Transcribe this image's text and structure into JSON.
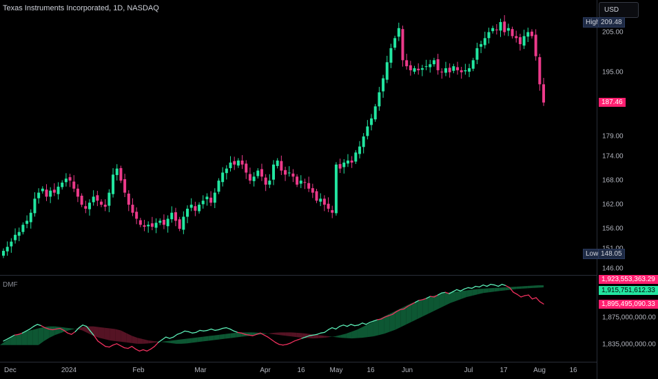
{
  "header": {
    "title": "Texas Instruments Incorporated, 1D, NASDAQ",
    "currency": "USD",
    "indicator": "DMF"
  },
  "price_scale": {
    "ticks": [
      "205.00",
      "195.00",
      "179.00",
      "174.00",
      "168.00",
      "162.00",
      "156.00",
      "151.00",
      "146.00"
    ],
    "high_label": "High",
    "high_value": "209.48",
    "low_label": "Low",
    "low_value": "148.05",
    "last_value": "187.46"
  },
  "indicator_scale": {
    "ticks": [
      "1,875,000,000.00",
      "1,835,000,000.00"
    ],
    "badges": [
      "1,923,553,363.29",
      "1,915,751,612.33",
      "1,895,495,090.33"
    ]
  },
  "time_axis": [
    "Dec",
    "2024",
    "Feb",
    "Mar",
    "Apr",
    "16",
    "May",
    "16",
    "Jun",
    "Jul",
    "17",
    "Aug",
    "16"
  ],
  "colors": {
    "up": "#22e6a0",
    "down": "#ec3a8a",
    "dmf_line_up": "#5cf0b8",
    "dmf_line_down": "#f0305e",
    "fill_up": "#0e5c36",
    "fill_down": "#5a1426",
    "badge_pink": "#ff1f70",
    "badge_green": "#22e6a0"
  },
  "chart_data": [
    {
      "type": "candlestick",
      "title": "Texas Instruments Incorporated, 1D, NASDAQ",
      "x": [
        "Dec",
        "2024",
        "Feb",
        "Mar",
        "Apr",
        "16",
        "May",
        "16",
        "Jun",
        "Jul",
        "17",
        "Aug",
        "16"
      ],
      "close_path": [
        150.5,
        151.5,
        152.8,
        154.5,
        155.2,
        157,
        158,
        160,
        163.5,
        165,
        166,
        164,
        165.5,
        165,
        166.5,
        167.5,
        168.5,
        168,
        166,
        164,
        162,
        161,
        162.5,
        164,
        163,
        162,
        161.5,
        165,
        169.5,
        171,
        168,
        165,
        162,
        160,
        158.5,
        157,
        156.5,
        157,
        156.5,
        157.5,
        158,
        157,
        158.5,
        160,
        158,
        156,
        159,
        161,
        162,
        160.5,
        162,
        163,
        164,
        162.5,
        165,
        168,
        170,
        171,
        172.5,
        172,
        173,
        172,
        170,
        168,
        169,
        170.5,
        169,
        167,
        168,
        172,
        173,
        170.5,
        169.5,
        170,
        169,
        167,
        168,
        167.5,
        166,
        165,
        163,
        163.5,
        162,
        161,
        160,
        172,
        171,
        172.5,
        173,
        172.5,
        175,
        176.5,
        179,
        181.5,
        183.5,
        186.5,
        190,
        193.5,
        197.5,
        201,
        203.5,
        206,
        198,
        196.5,
        195.5,
        196,
        195.5,
        196,
        196.5,
        197,
        198,
        195.5,
        195,
        196,
        195,
        196.5,
        195.5,
        195,
        195.5,
        196,
        198,
        201,
        202,
        203.5,
        205,
        206,
        205.5,
        207.5,
        205,
        206,
        204,
        203.5,
        202,
        204,
        205,
        204,
        199,
        192,
        187.46
      ],
      "high": 209.48,
      "low": 148.05,
      "last": 187.46,
      "ylim": [
        144.5,
        213
      ]
    },
    {
      "type": "line",
      "title": "DMF",
      "series": [
        {
          "values": [
            1840,
            1843,
            1846,
            1849,
            1850,
            1852,
            1855,
            1858,
            1862,
            1865,
            1863,
            1860,
            1858,
            1857,
            1858,
            1859,
            1856,
            1852,
            1850,
            1854,
            1860,
            1864,
            1862,
            1855,
            1848,
            1840,
            1836,
            1832,
            1831,
            1834,
            1836,
            1833,
            1830,
            1829,
            1832,
            1828,
            1825,
            1827,
            1825,
            1828,
            1832,
            1838,
            1842,
            1846,
            1844,
            1846,
            1850,
            1852,
            1855,
            1854,
            1852,
            1853,
            1856,
            1855,
            1856,
            1858,
            1856,
            1857,
            1859,
            1860,
            1858,
            1855,
            1853,
            1852,
            1850,
            1849,
            1848,
            1850,
            1852,
            1849,
            1846,
            1842,
            1838,
            1835,
            1834,
            1835,
            1837,
            1840,
            1842,
            1844,
            1846,
            1848,
            1849,
            1850,
            1852,
            1853,
            1857,
            1860,
            1858,
            1862,
            1864,
            1862,
            1865,
            1863,
            1864,
            1867,
            1865,
            1868,
            1870,
            1872,
            1873,
            1876,
            1878,
            1880,
            1884,
            1887,
            1888,
            1892,
            1895,
            1898,
            1901,
            1902,
            1904,
            1907,
            1906,
            1909,
            1912,
            1913,
            1911,
            1914,
            1917,
            1915,
            1918,
            1920,
            1919,
            1922,
            1921,
            1924,
            1922,
            1925,
            1924,
            1922,
            1925,
            1923,
            1920,
            1913,
            1910,
            1906,
            1908,
            1909,
            1903,
            1905,
            1899,
            1895.5
          ]
        },
        {
          "values": [
            1834,
            1840,
            1845,
            1849,
            1852,
            1855,
            1857,
            1859,
            1861,
            1862,
            1862,
            1861,
            1860,
            1859,
            1858,
            1856,
            1852,
            1848,
            1845,
            1843,
            1841,
            1840,
            1839,
            1838,
            1837,
            1836,
            1836,
            1836.5,
            1837.5,
            1838.5,
            1839.5,
            1840.5,
            1841.5,
            1842.5,
            1843.5,
            1844.5,
            1845.5,
            1846.5,
            1847.5,
            1848.5,
            1849.5,
            1850.5,
            1851.5,
            1852.5,
            1853,
            1853,
            1853,
            1852.5,
            1852,
            1851,
            1850,
            1849,
            1848,
            1847,
            1846,
            1845,
            1844.5,
            1844,
            1844.5,
            1845,
            1846,
            1847,
            1849,
            1851,
            1854,
            1857,
            1861,
            1865,
            1869,
            1873,
            1877,
            1881,
            1885,
            1889,
            1893,
            1897,
            1900,
            1903,
            1906,
            1908,
            1910,
            1912,
            1913,
            1914,
            1915,
            1916,
            1917,
            1918,
            1918.5,
            1919,
            1919.5,
            1920,
            1920.5,
            1921,
            1921.5,
            1922,
            1922.5,
            1923,
            1923.5,
            1923.6
          ]
        }
      ],
      "last_values": [
        1895495090.33,
        1923553363.29
      ],
      "ylim": [
        1810,
        1938
      ]
    }
  ]
}
